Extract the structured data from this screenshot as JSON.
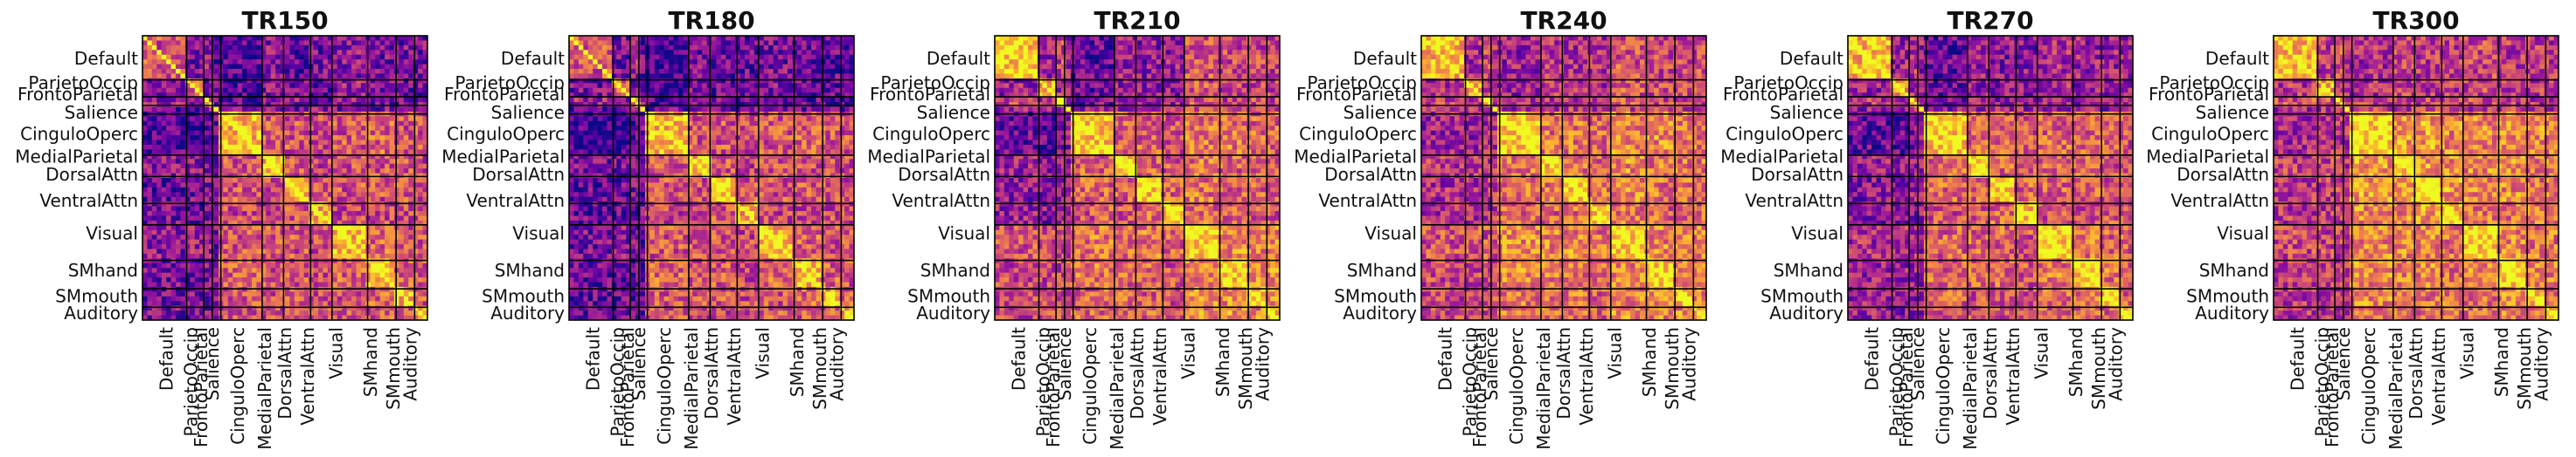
{
  "colormap": [
    "#0d0887",
    "#5b02a3",
    "#9a179b",
    "#cb4678",
    "#eb7852",
    "#fbb32f",
    "#f0f921"
  ],
  "chart_data": [
    {
      "type": "heatmap",
      "title": "TR150",
      "row_labels": [
        "Default",
        "ParietoOccip",
        "FrontoParietal",
        "Salience",
        "CinguloOperc",
        "MedialParietal",
        "DorsalAttn",
        "VentralAttn",
        "Visual",
        "SMhand",
        "SMmouth",
        "Auditory"
      ],
      "col_labels": [
        "Default",
        "ParietoOccip",
        "FrontoParietal",
        "Salience",
        "CinguloOperc",
        "MedialParietal",
        "DorsalAttn",
        "VentralAttn",
        "Visual",
        "SMhand",
        "SMmouth",
        "Auditory"
      ],
      "block_means": [
        [
          0.55,
          0.25,
          0.35,
          0.2,
          0.15,
          0.3,
          0.2,
          0.25,
          0.3,
          0.25,
          0.25,
          0.25
        ],
        [
          0.25,
          0.6,
          0.25,
          0.2,
          0.15,
          0.3,
          0.25,
          0.2,
          0.35,
          0.25,
          0.25,
          0.25
        ],
        [
          0.35,
          0.25,
          0.6,
          0.3,
          0.2,
          0.3,
          0.3,
          0.25,
          0.3,
          0.25,
          0.25,
          0.25
        ],
        [
          0.2,
          0.2,
          0.3,
          0.55,
          0.25,
          0.25,
          0.25,
          0.3,
          0.25,
          0.25,
          0.25,
          0.25
        ],
        [
          0.15,
          0.15,
          0.2,
          0.25,
          0.85,
          0.55,
          0.55,
          0.5,
          0.55,
          0.6,
          0.55,
          0.55
        ],
        [
          0.3,
          0.3,
          0.3,
          0.25,
          0.55,
          0.85,
          0.55,
          0.5,
          0.55,
          0.55,
          0.55,
          0.5
        ],
        [
          0.2,
          0.25,
          0.3,
          0.25,
          0.55,
          0.55,
          0.85,
          0.55,
          0.55,
          0.55,
          0.55,
          0.5
        ],
        [
          0.25,
          0.2,
          0.25,
          0.3,
          0.5,
          0.5,
          0.55,
          0.8,
          0.5,
          0.5,
          0.5,
          0.5
        ],
        [
          0.3,
          0.35,
          0.3,
          0.25,
          0.55,
          0.55,
          0.55,
          0.5,
          0.85,
          0.6,
          0.55,
          0.55
        ],
        [
          0.25,
          0.25,
          0.25,
          0.25,
          0.6,
          0.55,
          0.55,
          0.5,
          0.6,
          0.85,
          0.6,
          0.55
        ],
        [
          0.25,
          0.25,
          0.25,
          0.25,
          0.55,
          0.55,
          0.55,
          0.5,
          0.55,
          0.6,
          0.8,
          0.55
        ],
        [
          0.25,
          0.25,
          0.25,
          0.25,
          0.55,
          0.5,
          0.5,
          0.5,
          0.55,
          0.55,
          0.55,
          0.8
        ]
      ]
    },
    {
      "type": "heatmap",
      "title": "TR180",
      "row_labels": [
        "Default",
        "ParietoOccip",
        "FrontoParietal",
        "Salience",
        "CinguloOperc",
        "MedialParietal",
        "DorsalAttn",
        "VentralAttn",
        "Visual",
        "SMhand",
        "SMmouth",
        "Auditory"
      ],
      "col_labels": [
        "Default",
        "ParietoOccip",
        "FrontoParietal",
        "Salience",
        "CinguloOperc",
        "MedialParietal",
        "DorsalAttn",
        "VentralAttn",
        "Visual",
        "SMhand",
        "SMmouth",
        "Auditory"
      ],
      "block_means": [
        [
          0.55,
          0.25,
          0.35,
          0.2,
          0.1,
          0.25,
          0.2,
          0.2,
          0.25,
          0.2,
          0.2,
          0.2
        ],
        [
          0.25,
          0.6,
          0.25,
          0.2,
          0.1,
          0.25,
          0.2,
          0.2,
          0.3,
          0.2,
          0.2,
          0.2
        ],
        [
          0.35,
          0.25,
          0.6,
          0.3,
          0.15,
          0.25,
          0.25,
          0.2,
          0.25,
          0.2,
          0.2,
          0.2
        ],
        [
          0.2,
          0.2,
          0.3,
          0.55,
          0.2,
          0.2,
          0.2,
          0.25,
          0.2,
          0.2,
          0.2,
          0.2
        ],
        [
          0.1,
          0.1,
          0.15,
          0.2,
          0.85,
          0.55,
          0.55,
          0.5,
          0.55,
          0.6,
          0.55,
          0.55
        ],
        [
          0.25,
          0.25,
          0.25,
          0.2,
          0.55,
          0.85,
          0.55,
          0.5,
          0.55,
          0.55,
          0.55,
          0.5
        ],
        [
          0.2,
          0.2,
          0.25,
          0.2,
          0.55,
          0.55,
          0.85,
          0.55,
          0.55,
          0.55,
          0.55,
          0.5
        ],
        [
          0.2,
          0.2,
          0.2,
          0.25,
          0.5,
          0.5,
          0.55,
          0.8,
          0.5,
          0.5,
          0.5,
          0.5
        ],
        [
          0.25,
          0.3,
          0.25,
          0.2,
          0.55,
          0.55,
          0.55,
          0.5,
          0.85,
          0.6,
          0.55,
          0.55
        ],
        [
          0.2,
          0.2,
          0.2,
          0.2,
          0.6,
          0.55,
          0.55,
          0.5,
          0.6,
          0.85,
          0.6,
          0.55
        ],
        [
          0.2,
          0.2,
          0.2,
          0.2,
          0.55,
          0.55,
          0.55,
          0.5,
          0.55,
          0.6,
          0.8,
          0.55
        ],
        [
          0.2,
          0.2,
          0.2,
          0.2,
          0.55,
          0.5,
          0.5,
          0.5,
          0.55,
          0.55,
          0.55,
          0.8
        ]
      ]
    },
    {
      "type": "heatmap",
      "title": "TR210",
      "row_labels": [
        "Default",
        "ParietoOccip",
        "FrontoParietal",
        "Salience",
        "CinguloOperc",
        "MedialParietal",
        "DorsalAttn",
        "VentralAttn",
        "Visual",
        "SMhand",
        "SMmouth",
        "Auditory"
      ],
      "col_labels": [
        "Default",
        "ParietoOccip",
        "FrontoParietal",
        "Salience",
        "CinguloOperc",
        "MedialParietal",
        "DorsalAttn",
        "VentralAttn",
        "Visual",
        "SMhand",
        "SMmouth",
        "Auditory"
      ],
      "block_means": [
        [
          0.9,
          0.35,
          0.5,
          0.35,
          0.2,
          0.35,
          0.3,
          0.35,
          0.55,
          0.5,
          0.5,
          0.5
        ],
        [
          0.35,
          0.8,
          0.4,
          0.3,
          0.2,
          0.35,
          0.3,
          0.3,
          0.55,
          0.5,
          0.5,
          0.5
        ],
        [
          0.5,
          0.4,
          0.8,
          0.4,
          0.25,
          0.35,
          0.35,
          0.35,
          0.55,
          0.5,
          0.5,
          0.5
        ],
        [
          0.35,
          0.3,
          0.4,
          0.75,
          0.3,
          0.35,
          0.35,
          0.4,
          0.5,
          0.5,
          0.5,
          0.5
        ],
        [
          0.2,
          0.2,
          0.25,
          0.3,
          0.9,
          0.6,
          0.6,
          0.55,
          0.65,
          0.65,
          0.6,
          0.6
        ],
        [
          0.35,
          0.35,
          0.35,
          0.35,
          0.6,
          0.9,
          0.6,
          0.55,
          0.65,
          0.6,
          0.6,
          0.6
        ],
        [
          0.3,
          0.3,
          0.35,
          0.35,
          0.6,
          0.6,
          0.9,
          0.6,
          0.65,
          0.6,
          0.6,
          0.6
        ],
        [
          0.35,
          0.3,
          0.35,
          0.4,
          0.55,
          0.55,
          0.6,
          0.85,
          0.6,
          0.55,
          0.55,
          0.55
        ],
        [
          0.55,
          0.55,
          0.55,
          0.5,
          0.65,
          0.65,
          0.65,
          0.6,
          0.92,
          0.7,
          0.7,
          0.7
        ],
        [
          0.5,
          0.5,
          0.5,
          0.5,
          0.65,
          0.6,
          0.6,
          0.55,
          0.7,
          0.92,
          0.7,
          0.7
        ],
        [
          0.5,
          0.5,
          0.5,
          0.5,
          0.6,
          0.6,
          0.6,
          0.55,
          0.7,
          0.7,
          0.9,
          0.7
        ],
        [
          0.5,
          0.5,
          0.5,
          0.5,
          0.6,
          0.6,
          0.6,
          0.55,
          0.7,
          0.7,
          0.7,
          0.9
        ]
      ]
    },
    {
      "type": "heatmap",
      "title": "TR240",
      "row_labels": [
        "Default",
        "ParietoOccip",
        "FrontoParietal",
        "Salience",
        "CinguloOperc",
        "MedialParietal",
        "DorsalAttn",
        "VentralAttn",
        "Visual",
        "SMhand",
        "SMmouth",
        "Auditory"
      ],
      "col_labels": [
        "Default",
        "ParietoOccip",
        "FrontoParietal",
        "Salience",
        "CinguloOperc",
        "MedialParietal",
        "DorsalAttn",
        "VentralAttn",
        "Visual",
        "SMhand",
        "SMmouth",
        "Auditory"
      ],
      "block_means": [
        [
          0.85,
          0.4,
          0.5,
          0.4,
          0.35,
          0.45,
          0.4,
          0.4,
          0.55,
          0.5,
          0.5,
          0.5
        ],
        [
          0.4,
          0.8,
          0.45,
          0.4,
          0.35,
          0.45,
          0.4,
          0.4,
          0.55,
          0.5,
          0.5,
          0.5
        ],
        [
          0.5,
          0.45,
          0.8,
          0.45,
          0.4,
          0.45,
          0.45,
          0.4,
          0.55,
          0.5,
          0.5,
          0.5
        ],
        [
          0.4,
          0.4,
          0.45,
          0.75,
          0.4,
          0.45,
          0.45,
          0.45,
          0.5,
          0.5,
          0.5,
          0.5
        ],
        [
          0.35,
          0.35,
          0.4,
          0.4,
          0.92,
          0.65,
          0.65,
          0.6,
          0.7,
          0.7,
          0.65,
          0.65
        ],
        [
          0.45,
          0.45,
          0.45,
          0.45,
          0.65,
          0.9,
          0.65,
          0.6,
          0.7,
          0.65,
          0.65,
          0.65
        ],
        [
          0.4,
          0.4,
          0.45,
          0.45,
          0.65,
          0.65,
          0.92,
          0.65,
          0.7,
          0.65,
          0.65,
          0.65
        ],
        [
          0.4,
          0.4,
          0.4,
          0.45,
          0.6,
          0.6,
          0.65,
          0.85,
          0.65,
          0.6,
          0.6,
          0.6
        ],
        [
          0.55,
          0.55,
          0.55,
          0.5,
          0.7,
          0.7,
          0.7,
          0.65,
          0.92,
          0.7,
          0.7,
          0.7
        ],
        [
          0.5,
          0.5,
          0.5,
          0.5,
          0.7,
          0.65,
          0.65,
          0.6,
          0.7,
          0.92,
          0.7,
          0.7
        ],
        [
          0.5,
          0.5,
          0.5,
          0.5,
          0.65,
          0.65,
          0.65,
          0.6,
          0.7,
          0.7,
          0.9,
          0.7
        ],
        [
          0.5,
          0.5,
          0.5,
          0.5,
          0.65,
          0.65,
          0.65,
          0.6,
          0.7,
          0.7,
          0.7,
          0.9
        ]
      ]
    },
    {
      "type": "heatmap",
      "title": "TR270",
      "row_labels": [
        "Default",
        "ParietoOccip",
        "FrontoParietal",
        "Salience",
        "CinguloOperc",
        "MedialParietal",
        "DorsalAttn",
        "VentralAttn",
        "Visual",
        "SMhand",
        "SMmouth",
        "Auditory"
      ],
      "col_labels": [
        "Default",
        "ParietoOccip",
        "FrontoParietal",
        "Salience",
        "CinguloOperc",
        "MedialParietal",
        "DorsalAttn",
        "VentralAttn",
        "Visual",
        "SMhand",
        "SMmouth",
        "Auditory"
      ],
      "block_means": [
        [
          0.85,
          0.35,
          0.45,
          0.35,
          0.2,
          0.35,
          0.3,
          0.3,
          0.4,
          0.35,
          0.35,
          0.35
        ],
        [
          0.35,
          0.8,
          0.4,
          0.3,
          0.2,
          0.35,
          0.3,
          0.3,
          0.4,
          0.35,
          0.35,
          0.35
        ],
        [
          0.45,
          0.4,
          0.8,
          0.4,
          0.25,
          0.35,
          0.35,
          0.3,
          0.4,
          0.35,
          0.35,
          0.35
        ],
        [
          0.35,
          0.3,
          0.4,
          0.75,
          0.3,
          0.35,
          0.35,
          0.35,
          0.35,
          0.35,
          0.35,
          0.35
        ],
        [
          0.2,
          0.2,
          0.25,
          0.3,
          0.9,
          0.6,
          0.6,
          0.55,
          0.6,
          0.6,
          0.6,
          0.55
        ],
        [
          0.35,
          0.35,
          0.35,
          0.35,
          0.6,
          0.9,
          0.6,
          0.55,
          0.6,
          0.6,
          0.55,
          0.55
        ],
        [
          0.3,
          0.3,
          0.35,
          0.35,
          0.6,
          0.6,
          0.9,
          0.6,
          0.6,
          0.6,
          0.55,
          0.55
        ],
        [
          0.3,
          0.3,
          0.3,
          0.35,
          0.55,
          0.55,
          0.6,
          0.85,
          0.55,
          0.55,
          0.55,
          0.55
        ],
        [
          0.4,
          0.4,
          0.4,
          0.35,
          0.6,
          0.6,
          0.6,
          0.55,
          0.92,
          0.65,
          0.6,
          0.6
        ],
        [
          0.35,
          0.35,
          0.35,
          0.35,
          0.6,
          0.6,
          0.6,
          0.55,
          0.65,
          0.92,
          0.65,
          0.6
        ],
        [
          0.35,
          0.35,
          0.35,
          0.35,
          0.6,
          0.55,
          0.55,
          0.55,
          0.6,
          0.65,
          0.9,
          0.6
        ],
        [
          0.35,
          0.35,
          0.35,
          0.35,
          0.55,
          0.55,
          0.55,
          0.55,
          0.6,
          0.6,
          0.6,
          0.9
        ]
      ]
    },
    {
      "type": "heatmap",
      "title": "TR300",
      "row_labels": [
        "Default",
        "ParietoOccip",
        "FrontoParietal",
        "Salience",
        "CinguloOperc",
        "MedialParietal",
        "DorsalAttn",
        "VentralAttn",
        "Visual",
        "SMhand",
        "SMmouth",
        "Auditory"
      ],
      "col_labels": [
        "Default",
        "ParietoOccip",
        "FrontoParietal",
        "Salience",
        "CinguloOperc",
        "MedialParietal",
        "DorsalAttn",
        "VentralAttn",
        "Visual",
        "SMhand",
        "SMmouth",
        "Auditory"
      ],
      "block_means": [
        [
          0.85,
          0.45,
          0.55,
          0.4,
          0.4,
          0.5,
          0.45,
          0.45,
          0.5,
          0.45,
          0.45,
          0.45
        ],
        [
          0.45,
          0.8,
          0.5,
          0.4,
          0.4,
          0.5,
          0.45,
          0.45,
          0.5,
          0.45,
          0.45,
          0.45
        ],
        [
          0.55,
          0.5,
          0.8,
          0.5,
          0.45,
          0.5,
          0.5,
          0.45,
          0.5,
          0.45,
          0.45,
          0.45
        ],
        [
          0.4,
          0.4,
          0.5,
          0.75,
          0.45,
          0.45,
          0.45,
          0.5,
          0.45,
          0.45,
          0.45,
          0.45
        ],
        [
          0.4,
          0.4,
          0.45,
          0.45,
          0.92,
          0.75,
          0.75,
          0.7,
          0.7,
          0.7,
          0.7,
          0.65
        ],
        [
          0.5,
          0.5,
          0.5,
          0.45,
          0.75,
          0.92,
          0.75,
          0.7,
          0.7,
          0.7,
          0.65,
          0.65
        ],
        [
          0.45,
          0.45,
          0.5,
          0.45,
          0.75,
          0.75,
          0.92,
          0.75,
          0.7,
          0.7,
          0.65,
          0.65
        ],
        [
          0.45,
          0.45,
          0.45,
          0.5,
          0.7,
          0.7,
          0.75,
          0.88,
          0.65,
          0.65,
          0.65,
          0.65
        ],
        [
          0.5,
          0.5,
          0.5,
          0.45,
          0.7,
          0.7,
          0.7,
          0.65,
          0.92,
          0.7,
          0.65,
          0.65
        ],
        [
          0.45,
          0.45,
          0.45,
          0.45,
          0.7,
          0.7,
          0.7,
          0.65,
          0.7,
          0.92,
          0.7,
          0.65
        ],
        [
          0.45,
          0.45,
          0.45,
          0.45,
          0.7,
          0.65,
          0.65,
          0.65,
          0.65,
          0.7,
          0.9,
          0.65
        ],
        [
          0.45,
          0.45,
          0.45,
          0.45,
          0.65,
          0.65,
          0.65,
          0.65,
          0.65,
          0.65,
          0.65,
          0.9
        ]
      ]
    }
  ]
}
